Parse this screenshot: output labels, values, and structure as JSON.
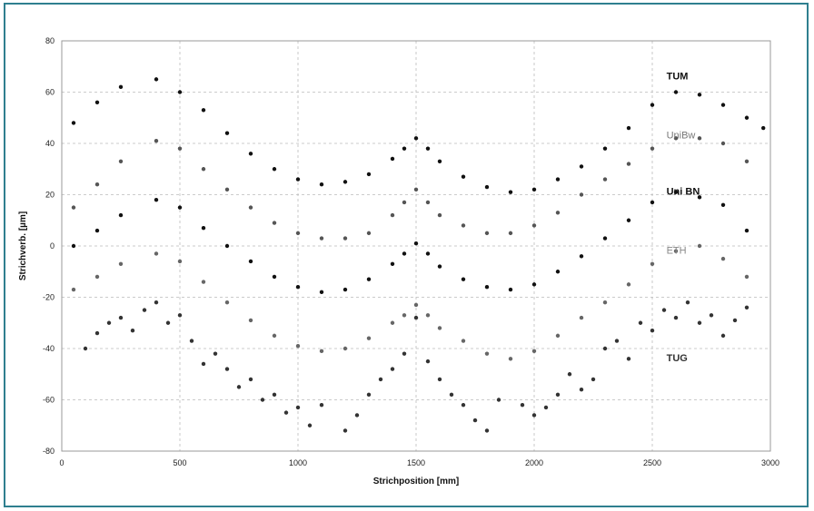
{
  "chart_data": {
    "type": "scatter",
    "title": "",
    "xlabel": "Strichposition [mm]",
    "ylabel": "Strichverb. [µm]",
    "xlim": [
      0,
      3000
    ],
    "ylim": [
      -80,
      80
    ],
    "x_ticks": [
      0,
      500,
      1000,
      1500,
      2000,
      2500,
      3000
    ],
    "y_ticks": [
      80,
      60,
      40,
      20,
      0,
      -20,
      -40,
      -60,
      -80
    ],
    "grid": true,
    "series": [
      {
        "name": "TUM",
        "color": "#111111",
        "label_color": "#111111",
        "label_bold": true,
        "label_at": [
          2560,
          65
        ],
        "points": [
          [
            50,
            48
          ],
          [
            150,
            56
          ],
          [
            250,
            62
          ],
          [
            400,
            65
          ],
          [
            500,
            60
          ],
          [
            600,
            53
          ],
          [
            700,
            44
          ],
          [
            800,
            36
          ],
          [
            900,
            30
          ],
          [
            1000,
            26
          ],
          [
            1100,
            24
          ],
          [
            1200,
            25
          ],
          [
            1300,
            28
          ],
          [
            1400,
            34
          ],
          [
            1450,
            38
          ],
          [
            1500,
            42
          ],
          [
            1550,
            38
          ],
          [
            1600,
            33
          ],
          [
            1700,
            27
          ],
          [
            1800,
            23
          ],
          [
            1900,
            21
          ],
          [
            2000,
            22
          ],
          [
            2100,
            26
          ],
          [
            2200,
            31
          ],
          [
            2300,
            38
          ],
          [
            2400,
            46
          ],
          [
            2500,
            55
          ],
          [
            2600,
            60
          ],
          [
            2700,
            59
          ],
          [
            2800,
            55
          ],
          [
            2900,
            50
          ],
          [
            2970,
            46
          ]
        ]
      },
      {
        "name": "UniBw",
        "color": "#555555",
        "label_color": "#777777",
        "label_bold": false,
        "label_at": [
          2560,
          42
        ],
        "points": [
          [
            50,
            15
          ],
          [
            150,
            24
          ],
          [
            250,
            33
          ],
          [
            400,
            41
          ],
          [
            500,
            38
          ],
          [
            600,
            30
          ],
          [
            700,
            22
          ],
          [
            800,
            15
          ],
          [
            900,
            9
          ],
          [
            1000,
            5
          ],
          [
            1100,
            3
          ],
          [
            1200,
            3
          ],
          [
            1300,
            5
          ],
          [
            1400,
            12
          ],
          [
            1450,
            17
          ],
          [
            1500,
            22
          ],
          [
            1550,
            17
          ],
          [
            1600,
            12
          ],
          [
            1700,
            8
          ],
          [
            1800,
            5
          ],
          [
            1900,
            5
          ],
          [
            2000,
            8
          ],
          [
            2100,
            13
          ],
          [
            2200,
            20
          ],
          [
            2300,
            26
          ],
          [
            2400,
            32
          ],
          [
            2500,
            38
          ],
          [
            2600,
            42
          ],
          [
            2700,
            42
          ],
          [
            2800,
            40
          ],
          [
            2900,
            33
          ]
        ]
      },
      {
        "name": "Uni BN",
        "color": "#111111",
        "label_color": "#111111",
        "label_bold": true,
        "label_at": [
          2560,
          20
        ],
        "points": [
          [
            50,
            0
          ],
          [
            150,
            6
          ],
          [
            250,
            12
          ],
          [
            400,
            18
          ],
          [
            500,
            15
          ],
          [
            600,
            7
          ],
          [
            700,
            0
          ],
          [
            800,
            -6
          ],
          [
            900,
            -12
          ],
          [
            1000,
            -16
          ],
          [
            1100,
            -18
          ],
          [
            1200,
            -17
          ],
          [
            1300,
            -13
          ],
          [
            1400,
            -7
          ],
          [
            1450,
            -3
          ],
          [
            1500,
            1
          ],
          [
            1550,
            -3
          ],
          [
            1600,
            -8
          ],
          [
            1700,
            -13
          ],
          [
            1800,
            -16
          ],
          [
            1900,
            -17
          ],
          [
            2000,
            -15
          ],
          [
            2100,
            -10
          ],
          [
            2200,
            -4
          ],
          [
            2300,
            3
          ],
          [
            2400,
            10
          ],
          [
            2500,
            17
          ],
          [
            2600,
            21
          ],
          [
            2700,
            19
          ],
          [
            2800,
            16
          ],
          [
            2900,
            6
          ]
        ]
      },
      {
        "name": "ETH",
        "color": "#666666",
        "label_color": "#888888",
        "label_bold": false,
        "label_at": [
          2560,
          -3
        ],
        "points": [
          [
            50,
            -17
          ],
          [
            150,
            -12
          ],
          [
            250,
            -7
          ],
          [
            400,
            -3
          ],
          [
            500,
            -6
          ],
          [
            600,
            -14
          ],
          [
            700,
            -22
          ],
          [
            800,
            -29
          ],
          [
            900,
            -35
          ],
          [
            1000,
            -39
          ],
          [
            1100,
            -41
          ],
          [
            1200,
            -40
          ],
          [
            1300,
            -36
          ],
          [
            1400,
            -30
          ],
          [
            1450,
            -27
          ],
          [
            1500,
            -23
          ],
          [
            1550,
            -27
          ],
          [
            1600,
            -32
          ],
          [
            1700,
            -37
          ],
          [
            1800,
            -42
          ],
          [
            1900,
            -44
          ],
          [
            2000,
            -41
          ],
          [
            2100,
            -35
          ],
          [
            2200,
            -28
          ],
          [
            2300,
            -22
          ],
          [
            2400,
            -15
          ],
          [
            2500,
            -7
          ],
          [
            2600,
            -2
          ],
          [
            2700,
            0
          ],
          [
            2800,
            -5
          ],
          [
            2900,
            -12
          ]
        ]
      },
      {
        "name": "TUG",
        "color": "#333333",
        "label_color": "#333333",
        "label_bold": true,
        "label_at": [
          2560,
          -45
        ],
        "points": [
          [
            100,
            -40
          ],
          [
            150,
            -34
          ],
          [
            200,
            -30
          ],
          [
            250,
            -28
          ],
          [
            300,
            -33
          ],
          [
            350,
            -25
          ],
          [
            400,
            -22
          ],
          [
            450,
            -30
          ],
          [
            500,
            -27
          ],
          [
            550,
            -37
          ],
          [
            600,
            -46
          ],
          [
            650,
            -42
          ],
          [
            700,
            -48
          ],
          [
            750,
            -55
          ],
          [
            800,
            -52
          ],
          [
            850,
            -60
          ],
          [
            900,
            -58
          ],
          [
            950,
            -65
          ],
          [
            1000,
            -63
          ],
          [
            1050,
            -70
          ],
          [
            1100,
            -62
          ],
          [
            1200,
            -72
          ],
          [
            1250,
            -66
          ],
          [
            1300,
            -58
          ],
          [
            1350,
            -52
          ],
          [
            1400,
            -48
          ],
          [
            1450,
            -42
          ],
          [
            1500,
            -28
          ],
          [
            1550,
            -45
          ],
          [
            1600,
            -52
          ],
          [
            1650,
            -58
          ],
          [
            1700,
            -62
          ],
          [
            1750,
            -68
          ],
          [
            1800,
            -72
          ],
          [
            1850,
            -60
          ],
          [
            1950,
            -62
          ],
          [
            2000,
            -66
          ],
          [
            2050,
            -63
          ],
          [
            2100,
            -58
          ],
          [
            2150,
            -50
          ],
          [
            2200,
            -56
          ],
          [
            2250,
            -52
          ],
          [
            2300,
            -40
          ],
          [
            2350,
            -37
          ],
          [
            2400,
            -44
          ],
          [
            2450,
            -30
          ],
          [
            2500,
            -33
          ],
          [
            2550,
            -25
          ],
          [
            2600,
            -28
          ],
          [
            2650,
            -22
          ],
          [
            2700,
            -30
          ],
          [
            2750,
            -27
          ],
          [
            2800,
            -35
          ],
          [
            2850,
            -29
          ],
          [
            2900,
            -24
          ]
        ]
      }
    ]
  }
}
